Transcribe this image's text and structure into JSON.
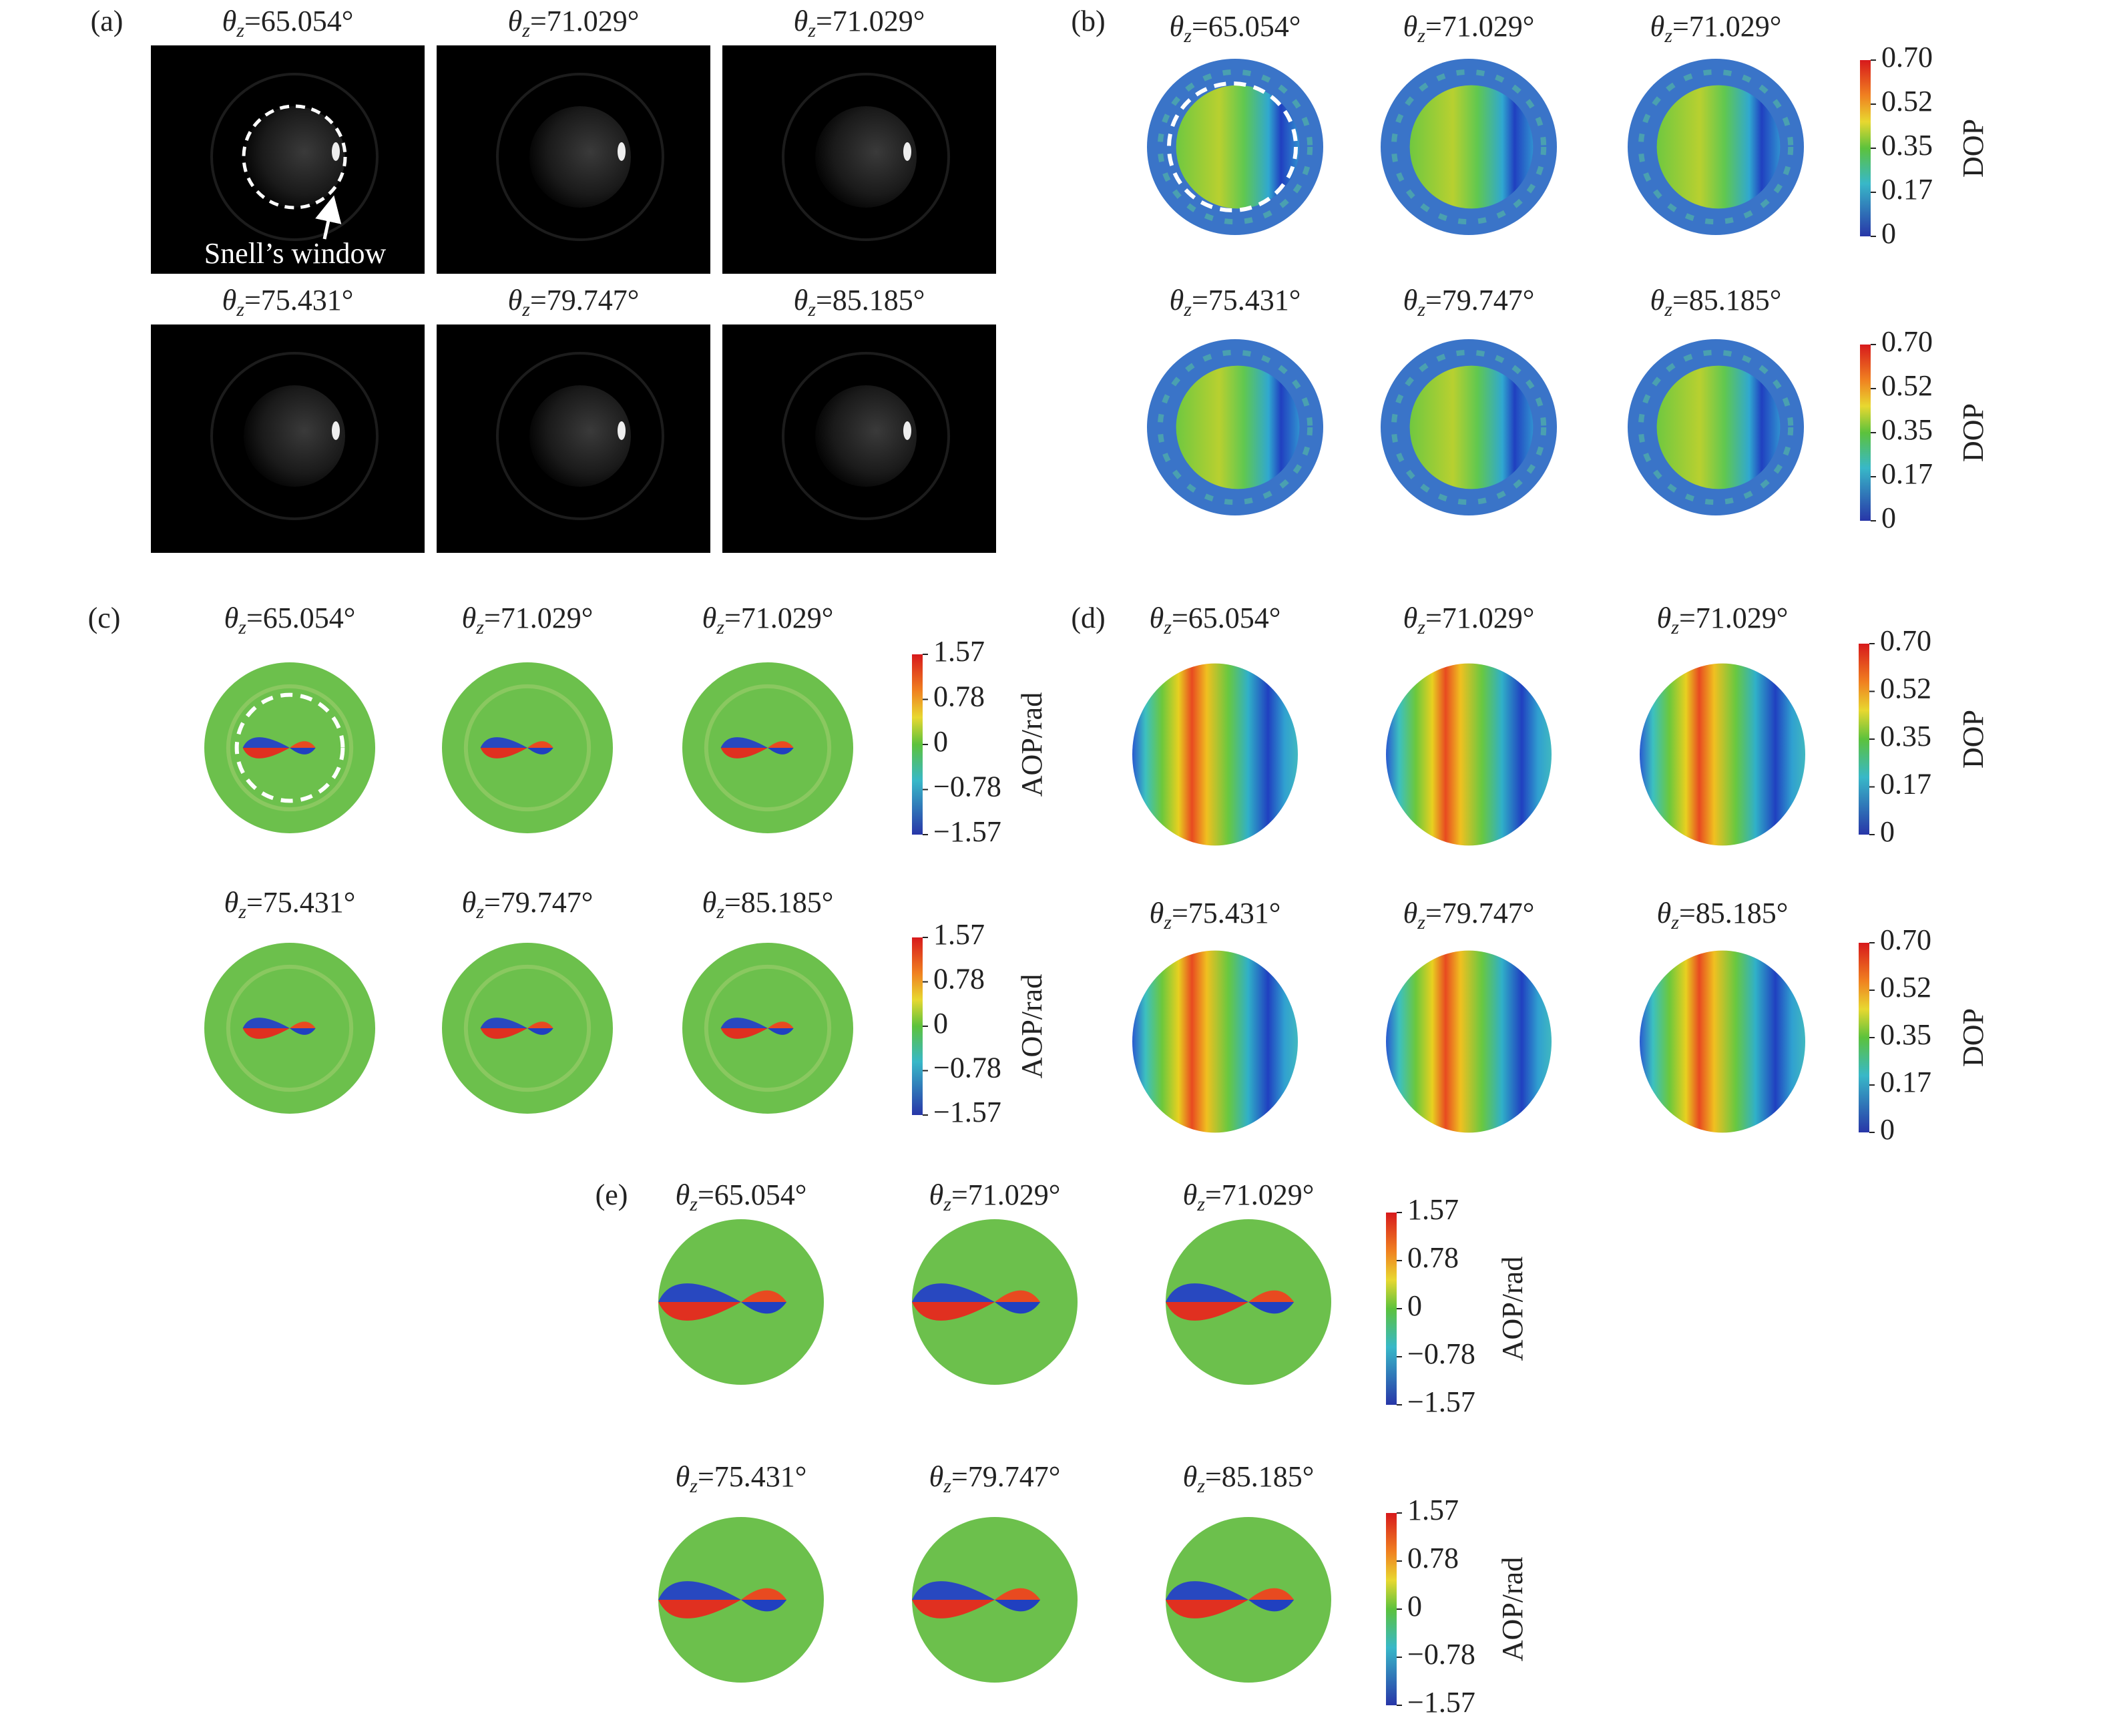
{
  "panels": [
    {
      "label": "(a)",
      "annotation": "Snell’s window",
      "titles": [
        {
          "symbol": "θ",
          "sub": "z",
          "value": "=65.054°"
        },
        {
          "symbol": "θ",
          "sub": "z",
          "value": "=71.029°"
        },
        {
          "symbol": "θ",
          "sub": "z",
          "value": "=71.029°"
        },
        {
          "symbol": "θ",
          "sub": "z",
          "value": "=75.431°"
        },
        {
          "symbol": "θ",
          "sub": "z",
          "value": "=79.747°"
        },
        {
          "symbol": "θ",
          "sub": "z",
          "value": "=85.185°"
        }
      ]
    },
    {
      "label": "(b)",
      "titles": [
        {
          "symbol": "θ",
          "sub": "z",
          "value": "=65.054°"
        },
        {
          "symbol": "θ",
          "sub": "z",
          "value": "=71.029°"
        },
        {
          "symbol": "θ",
          "sub": "z",
          "value": "=71.029°"
        },
        {
          "symbol": "θ",
          "sub": "z",
          "value": "=75.431°"
        },
        {
          "symbol": "θ",
          "sub": "z",
          "value": "=79.747°"
        },
        {
          "symbol": "θ",
          "sub": "z",
          "value": "=85.185°"
        }
      ],
      "colorbars": [
        {
          "label": "DOP",
          "ticks": [
            "0.70",
            "0.52",
            "0.35",
            "0.17",
            "0"
          ]
        },
        {
          "label": "DOP",
          "ticks": [
            "0.70",
            "0.52",
            "0.35",
            "0.17",
            "0"
          ]
        }
      ]
    },
    {
      "label": "(c)",
      "titles": [
        {
          "symbol": "θ",
          "sub": "z",
          "value": "=65.054°"
        },
        {
          "symbol": "θ",
          "sub": "z",
          "value": "=71.029°"
        },
        {
          "symbol": "θ",
          "sub": "z",
          "value": "=71.029°"
        },
        {
          "symbol": "θ",
          "sub": "z",
          "value": "=75.431°"
        },
        {
          "symbol": "θ",
          "sub": "z",
          "value": "=79.747°"
        },
        {
          "symbol": "θ",
          "sub": "z",
          "value": "=85.185°"
        }
      ],
      "colorbars": [
        {
          "label": "AOP/rad",
          "ticks": [
            "1.57",
            "0.78",
            "0",
            "−0.78",
            "−1.57"
          ]
        },
        {
          "label": "AOP/rad",
          "ticks": [
            "1.57",
            "0.78",
            "0",
            "−0.78",
            "−1.57"
          ]
        }
      ]
    },
    {
      "label": "(d)",
      "titles": [
        {
          "symbol": "θ",
          "sub": "z",
          "value": "=65.054°"
        },
        {
          "symbol": "θ",
          "sub": "z",
          "value": "=71.029°"
        },
        {
          "symbol": "θ",
          "sub": "z",
          "value": "=71.029°"
        },
        {
          "symbol": "θ",
          "sub": "z",
          "value": "=75.431°"
        },
        {
          "symbol": "θ",
          "sub": "z",
          "value": "=79.747°"
        },
        {
          "symbol": "θ",
          "sub": "z",
          "value": "=85.185°"
        }
      ],
      "colorbars": [
        {
          "label": "DOP",
          "ticks": [
            "0.70",
            "0.52",
            "0.35",
            "0.17",
            "0"
          ]
        },
        {
          "label": "DOP",
          "ticks": [
            "0.70",
            "0.52",
            "0.35",
            "0.17",
            "0"
          ]
        }
      ]
    },
    {
      "label": "(e)",
      "titles": [
        {
          "symbol": "θ",
          "sub": "z",
          "value": "=65.054°"
        },
        {
          "symbol": "θ",
          "sub": "z",
          "value": "=71.029°"
        },
        {
          "symbol": "θ",
          "sub": "z",
          "value": "=71.029°"
        },
        {
          "symbol": "θ",
          "sub": "z",
          "value": "=75.431°"
        },
        {
          "symbol": "θ",
          "sub": "z",
          "value": "=79.747°"
        },
        {
          "symbol": "θ",
          "sub": "z",
          "value": "=85.185°"
        }
      ],
      "colorbars": [
        {
          "label": "AOP/rad",
          "ticks": [
            "1.57",
            "0.78",
            "0",
            "−0.78",
            "−1.57"
          ]
        },
        {
          "label": "AOP/rad",
          "ticks": [
            "1.57",
            "0.78",
            "0",
            "−0.78",
            "−1.57"
          ]
        }
      ]
    }
  ]
}
